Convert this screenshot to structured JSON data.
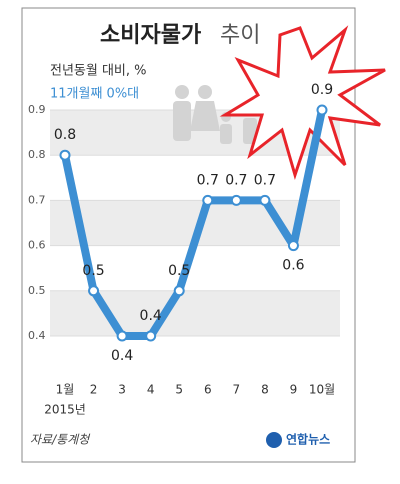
{
  "chart_data": {
    "type": "line",
    "title": "소비자물가",
    "title_suffix": "추이",
    "subtitle": "전년동월 대비, %",
    "highlight": "11개월째 0%대",
    "categories": [
      "1월",
      "2",
      "3",
      "4",
      "5",
      "6",
      "7",
      "8",
      "9",
      "10월"
    ],
    "x_note": "2015년",
    "series": [
      {
        "name": "소비자물가",
        "color": "#3d8fd3",
        "values": [
          0.8,
          0.5,
          0.4,
          0.4,
          0.5,
          0.7,
          0.7,
          0.7,
          0.6,
          0.9
        ]
      }
    ],
    "ylim": [
      0.4,
      0.9
    ],
    "yticks": [
      0.4,
      0.5,
      0.6,
      0.7,
      0.8,
      0.9
    ],
    "grid": true,
    "source": "자료/통계청",
    "logo": "연합뉴스"
  }
}
